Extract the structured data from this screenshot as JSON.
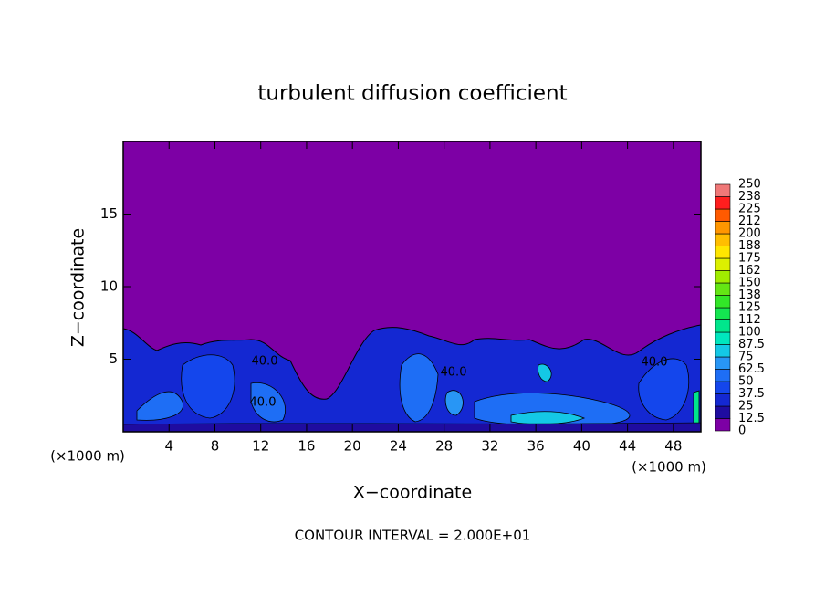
{
  "chart_data": {
    "type": "contour",
    "title": "turbulent diffusion coefficient",
    "x_label": "X−coordinate",
    "y_label": "Z−coordinate",
    "x_unit_labels": [
      "(×1000 m)",
      "(×1000 m)"
    ],
    "annotation": "CONTOUR INTERVAL = 2.000E+01",
    "contour_labels": [
      "40.0",
      "40.0",
      "40.0",
      "40.0"
    ],
    "xlim": [
      0,
      50.4
    ],
    "xticks": [
      4,
      8,
      12,
      16,
      20,
      24,
      28,
      32,
      36,
      40,
      44,
      48
    ],
    "ylim": [
      0,
      20
    ],
    "yticks": [
      5,
      10,
      15
    ],
    "colorbar": {
      "levels": [
        0,
        12.5,
        25,
        37.5,
        50,
        62.5,
        75,
        87.5,
        100,
        {
          "value": 112.5,
          "label": "112"
        },
        125,
        {
          "value": 137.5,
          "label": "138"
        },
        150,
        {
          "value": 162.5,
          "label": "162"
        },
        175,
        {
          "value": 187.5,
          "label": "188"
        },
        200,
        {
          "value": 212.5,
          "label": "212"
        },
        225,
        {
          "value": 237.5,
          "label": "238"
        },
        250
      ],
      "colors": [
        "#7d00a5",
        "#1f0ca0",
        "#1428d2",
        "#1446ec",
        "#1e6ef5",
        "#2896f5",
        "#14c8e6",
        "#00e6be",
        "#00e68c",
        "#14e650",
        "#32e628",
        "#64e614",
        "#a0ec00",
        "#dcf000",
        "#ffe600",
        "#ffbe00",
        "#ff9600",
        "#ff5a00",
        "#ff1e1e",
        "#f07878"
      ]
    }
  }
}
